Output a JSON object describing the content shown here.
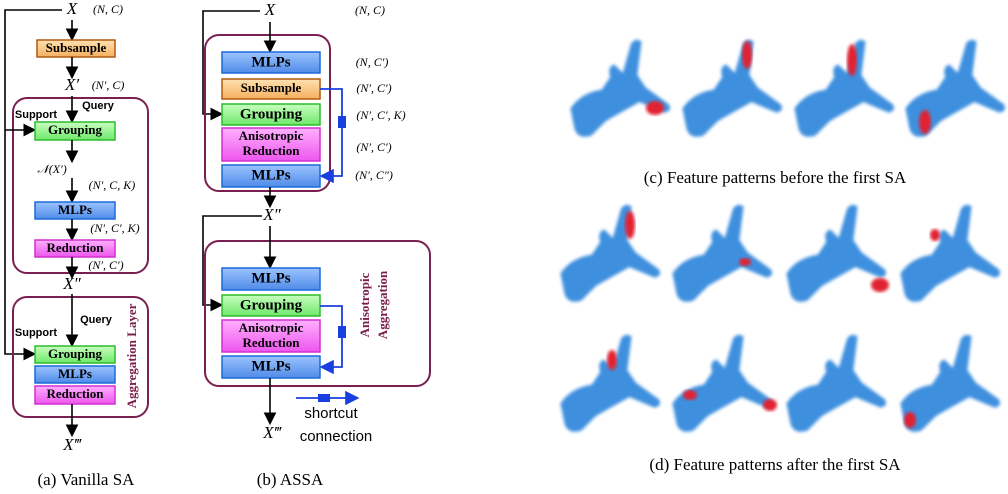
{
  "panel_a": {
    "input": "X",
    "input_shape": "(N, C)",
    "subsample": "Subsample",
    "x_prime": "X′",
    "x_prime_shape": "(N′, C)",
    "support": "Support",
    "query": "Query",
    "grouping": "Grouping",
    "neighbors": "𝒩(X′)",
    "shape_grouped": "(N′, C, K)",
    "mlps": "MLPs",
    "shape_mlp": "(N′, C′, K)",
    "reduction": "Reduction",
    "shape_reduced": "(N′, C′)",
    "x_double_prime": "X″",
    "layer2_query": "Query",
    "layer2_support": "Support",
    "layer2_grouping": "Grouping",
    "layer2_mlps": "MLPs",
    "layer2_reduction": "Reduction",
    "layer_label": "Aggregation Layer",
    "output": "X‴",
    "caption": "(a) Vanilla SA"
  },
  "panel_b": {
    "input": "X",
    "input_shape": "(N, C)",
    "mlps": "MLPs",
    "subsample": "Subsample",
    "grouping": "Grouping",
    "reduction_line1": "Anisotropic",
    "reduction_line2": "Reduction",
    "mlps_2": "MLPs",
    "shape_1": "(N, C′)",
    "shape_2": "(N′, C′)",
    "shape_3": "(N′, C′, K)",
    "shape_4": "(N′, C′)",
    "shape_5": "(N′, C″)",
    "x_double_prime": "X″",
    "layer2_mlps": "MLPs",
    "layer2_grouping": "Grouping",
    "layer2_reduction_line1": "Anisotropic",
    "layer2_reduction_line2": "Reduction",
    "layer2_mlps_2": "MLPs",
    "layer_label_line1": "Anisotropic",
    "layer_label_line2": "Aggregation",
    "output": "X‴",
    "legend_line1": "shortcut",
    "legend_line2": "connection",
    "caption": "(b) ASSA"
  },
  "panel_c": {
    "caption": "(c) Feature patterns before the first SA"
  },
  "panel_d": {
    "caption": "(d) Feature patterns after the first SA"
  }
}
